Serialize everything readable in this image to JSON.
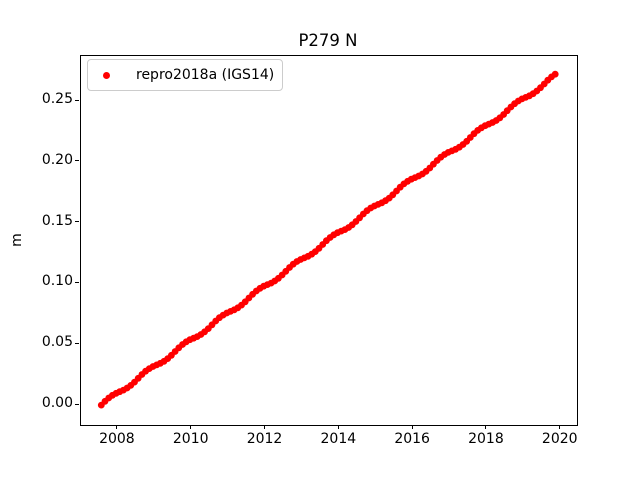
{
  "chart_data": {
    "type": "scatter",
    "title": "P279 N",
    "xlabel": "",
    "ylabel": "m",
    "xlim": [
      2007.0,
      2020.44
    ],
    "ylim": [
      -0.0164,
      0.287
    ],
    "xticks": [
      2008,
      2010,
      2012,
      2014,
      2016,
      2018,
      2020
    ],
    "xtick_labels": [
      "2008",
      "2010",
      "2012",
      "2014",
      "2016",
      "2018",
      "2020"
    ],
    "yticks": [
      0.0,
      0.05,
      0.1,
      0.15,
      0.2,
      0.25
    ],
    "ytick_labels": [
      "0.00",
      "0.05",
      "0.10",
      "0.15",
      "0.20",
      "0.25"
    ],
    "grid": false,
    "background_color": "#ffffff",
    "legend": {
      "position": "upper-left",
      "entries": [
        {
          "label": "repro2018a (IGS14)",
          "color": "#ff0000",
          "marker": "dot"
        }
      ]
    },
    "series": [
      {
        "name": "repro2018a (IGS14)",
        "color": "#ff0000",
        "marker": "dot",
        "x_start": 2007.55,
        "x_step": 0.1,
        "values": [
          0.0,
          0.0031,
          0.0058,
          0.008,
          0.0097,
          0.011,
          0.0123,
          0.014,
          0.0162,
          0.0189,
          0.022,
          0.0251,
          0.0278,
          0.03,
          0.0317,
          0.033,
          0.0343,
          0.036,
          0.0382,
          0.0409,
          0.044,
          0.0471,
          0.0498,
          0.052,
          0.0537,
          0.055,
          0.0563,
          0.058,
          0.0602,
          0.0629,
          0.066,
          0.0691,
          0.0718,
          0.074,
          0.0757,
          0.077,
          0.0783,
          0.08,
          0.0822,
          0.0849,
          0.088,
          0.0911,
          0.0938,
          0.096,
          0.0977,
          0.099,
          0.1003,
          0.102,
          0.1042,
          0.1069,
          0.11,
          0.1131,
          0.1158,
          0.118,
          0.1197,
          0.121,
          0.1223,
          0.124,
          0.1262,
          0.1289,
          0.132,
          0.1351,
          0.1378,
          0.14,
          0.1417,
          0.143,
          0.1443,
          0.146,
          0.1482,
          0.1509,
          0.154,
          0.1571,
          0.1598,
          0.162,
          0.1637,
          0.165,
          0.1663,
          0.168,
          0.1702,
          0.1729,
          0.176,
          0.1791,
          0.1818,
          0.184,
          0.1857,
          0.187,
          0.1883,
          0.19,
          0.1922,
          0.1949,
          0.198,
          0.2011,
          0.2038,
          0.206,
          0.2077,
          0.209,
          0.2103,
          0.212,
          0.2142,
          0.2169,
          0.22,
          0.2231,
          0.2258,
          0.228,
          0.2297,
          0.231,
          0.2323,
          0.234,
          0.2362,
          0.2389,
          0.242,
          0.2451,
          0.2478,
          0.25,
          0.2517,
          0.253,
          0.2543,
          0.256,
          0.2582,
          0.2609,
          0.264,
          0.2671,
          0.2698,
          0.272
        ]
      }
    ]
  }
}
